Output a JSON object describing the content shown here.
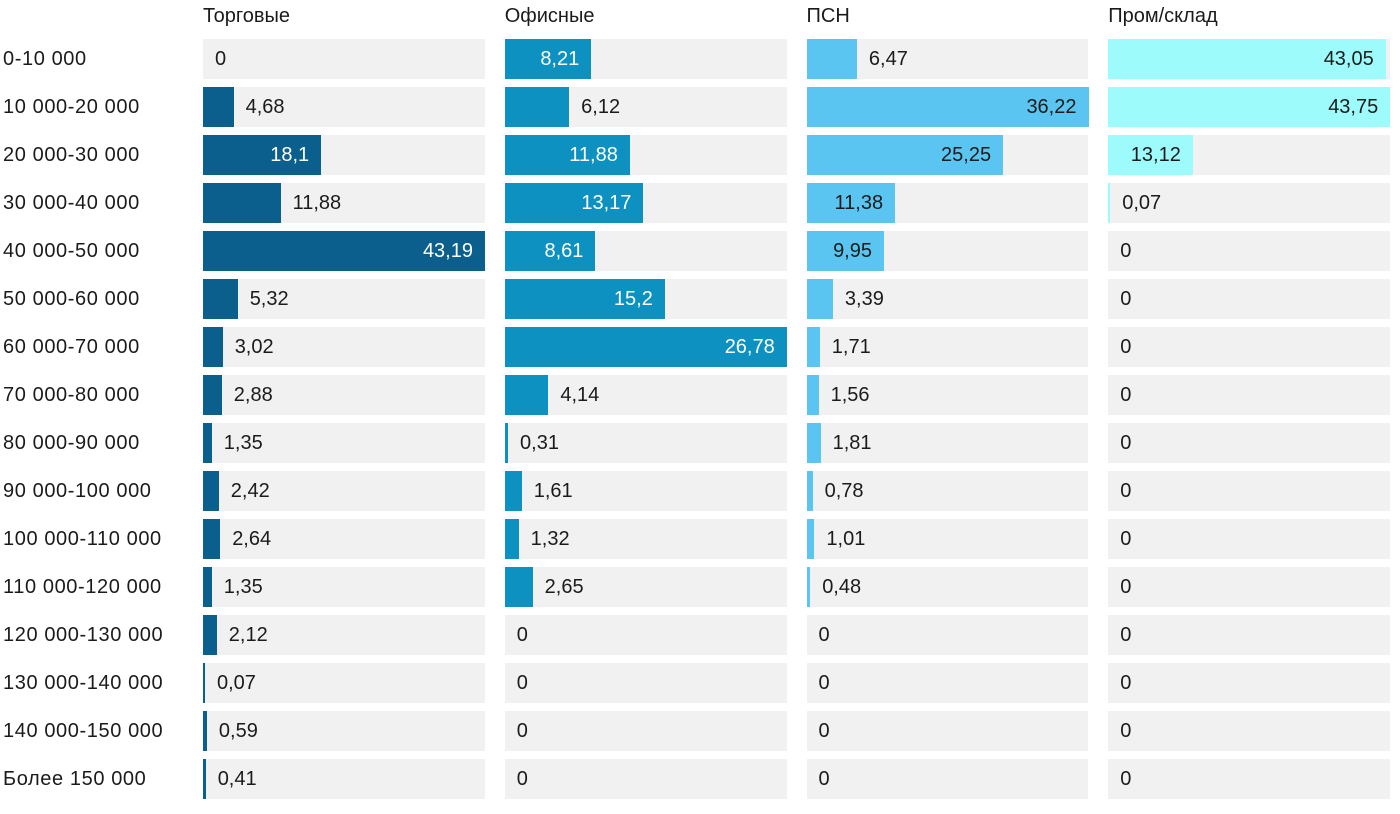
{
  "chart_data": {
    "type": "bar",
    "orientation": "horizontal",
    "scaling": "each column scaled independently to its own maximum value",
    "grid": false,
    "legend_position": "column headers on top",
    "value_decimal_separator": ",",
    "track_color": "#f1f1f1",
    "text_color": "#1b1b1b",
    "categories": [
      "0-10 000",
      "10 000-20 000",
      "20 000-30 000",
      "30 000-40 000",
      "40 000-50 000",
      "50 000-60 000",
      "60 000-70 000",
      "70 000-80 000",
      "80 000-90 000",
      "90 000-100 000",
      "100 000-110 000",
      "110 000-120 000",
      "120 000-130 000",
      "130 000-140 000",
      "140 000-150 000",
      "Более 150 000"
    ],
    "series": [
      {
        "name": "Торговые",
        "color": "#0a5f8c",
        "inside_label_color": "#ffffff",
        "values": [
          0,
          4.68,
          18.1,
          11.88,
          43.19,
          5.32,
          3.02,
          2.88,
          1.35,
          2.42,
          2.64,
          1.35,
          2.12,
          0.07,
          0.59,
          0.41
        ],
        "labels": [
          "0",
          "4,68",
          "18,1",
          "11,88",
          "43,19",
          "5,32",
          "3,02",
          "2,88",
          "1,35",
          "2,42",
          "2,64",
          "1,35",
          "2,12",
          "0,07",
          "0,59",
          "0,41"
        ]
      },
      {
        "name": "Офисные",
        "color": "#0d91c0",
        "inside_label_color": "#ffffff",
        "values": [
          8.21,
          6.12,
          11.88,
          13.17,
          8.61,
          15.2,
          26.78,
          4.14,
          0.31,
          1.61,
          1.32,
          2.65,
          0,
          0,
          0,
          0
        ],
        "labels": [
          "8,21",
          "6,12",
          "11,88",
          "13,17",
          "8,61",
          "15,2",
          "26,78",
          "4,14",
          "0,31",
          "1,61",
          "1,32",
          "2,65",
          "0",
          "0",
          "0",
          "0"
        ]
      },
      {
        "name": "ПСН",
        "color": "#59c5f0",
        "inside_label_color": "#1b1b1b",
        "values": [
          6.47,
          36.22,
          25.25,
          11.38,
          9.95,
          3.39,
          1.71,
          1.56,
          1.81,
          0.78,
          1.01,
          0.48,
          0,
          0,
          0,
          0
        ],
        "labels": [
          "6,47",
          "36,22",
          "25,25",
          "11,38",
          "9,95",
          "3,39",
          "1,71",
          "1,56",
          "1,81",
          "0,78",
          "1,01",
          "0,48",
          "0",
          "0",
          "0",
          "0"
        ]
      },
      {
        "name": "Пром/склад",
        "color": "#9efbfb",
        "inside_label_color": "#1b1b1b",
        "values": [
          43.05,
          43.75,
          13.12,
          0.07,
          0,
          0,
          0,
          0,
          0,
          0,
          0,
          0,
          0,
          0,
          0,
          0
        ],
        "labels": [
          "43,05",
          "43,75",
          "13,12",
          "0,07",
          "0",
          "0",
          "0",
          "0",
          "0",
          "0",
          "0",
          "0",
          "0",
          "0",
          "0",
          "0"
        ]
      }
    ]
  }
}
